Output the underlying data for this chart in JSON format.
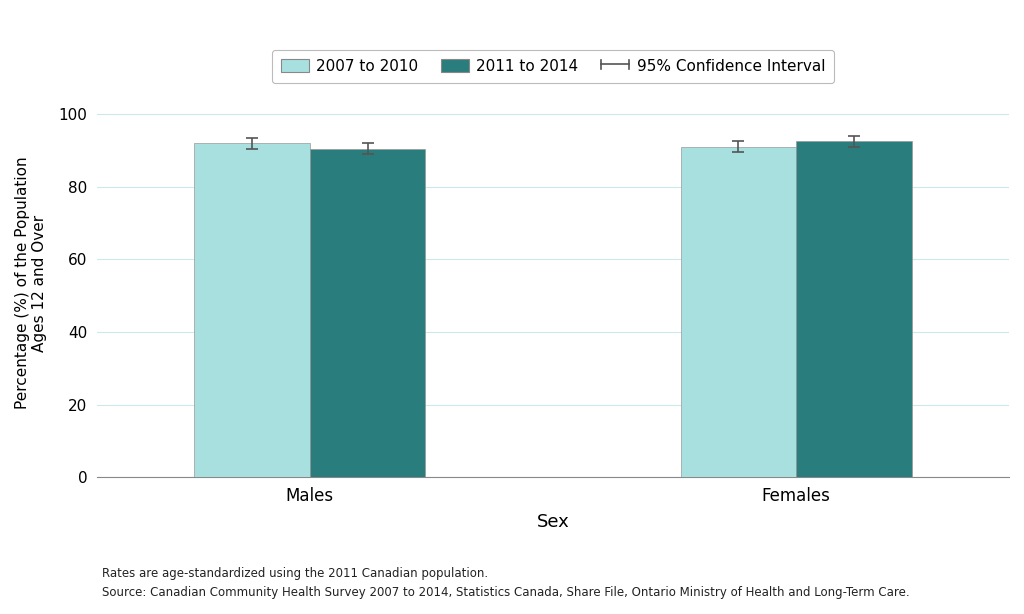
{
  "categories": [
    "Males",
    "Females"
  ],
  "bar_values_2007": [
    92.0,
    91.0
  ],
  "bar_values_2011": [
    90.5,
    92.5
  ],
  "ci_2007": [
    1.5,
    1.5
  ],
  "ci_2011": [
    1.5,
    1.5
  ],
  "color_2007": "#a8e0e0",
  "color_2011": "#2a7d7d",
  "xlabel": "Sex",
  "ylabel": "Percentage (%) of the Population\nAges 12 and Over",
  "ylim": [
    0,
    107
  ],
  "yticks": [
    0,
    20,
    40,
    60,
    80,
    100
  ],
  "legend_labels": [
    "2007 to 2010",
    "2011 to 2014",
    "95% Confidence Interval"
  ],
  "footnote_line1": "Rates are age-standardized using the 2011 Canadian population.",
  "footnote_line2": "Source: Canadian Community Health Survey 2007 to 2014, Statistics Canada, Share File, Ontario Ministry of Health and Long-Term Care.",
  "background_color": "#ffffff",
  "grid_color": "#cce8e8",
  "error_bar_color": "#555555",
  "bar_width": 0.38,
  "group_positions": [
    1.0,
    2.6
  ]
}
